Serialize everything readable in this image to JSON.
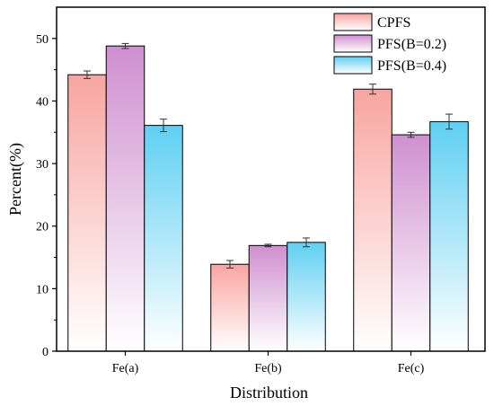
{
  "chart_data": {
    "type": "bar",
    "title": "",
    "xlabel": "Distribution",
    "ylabel": "Percent(%)",
    "ylim": [
      0,
      55
    ],
    "yticks": [
      0,
      10,
      20,
      30,
      40,
      50
    ],
    "categories": [
      "Fe(a)",
      "Fe(b)",
      "Fe(c)"
    ],
    "series": [
      {
        "name": "CPFS",
        "values": [
          44.2,
          13.9,
          41.9
        ],
        "errors": [
          0.6,
          0.6,
          0.8
        ],
        "color": "#f8a5a0"
      },
      {
        "name": "PFS(B=0.2)",
        "values": [
          48.8,
          16.9,
          34.6
        ],
        "errors": [
          0.4,
          0.2,
          0.4
        ],
        "color": "#cf8fcf"
      },
      {
        "name": "PFS(B=0.4)",
        "values": [
          36.1,
          17.4,
          36.7
        ],
        "errors": [
          1.0,
          0.7,
          1.2
        ],
        "color": "#5fcff2"
      }
    ],
    "legend_position": "top-right",
    "grid": false
  }
}
